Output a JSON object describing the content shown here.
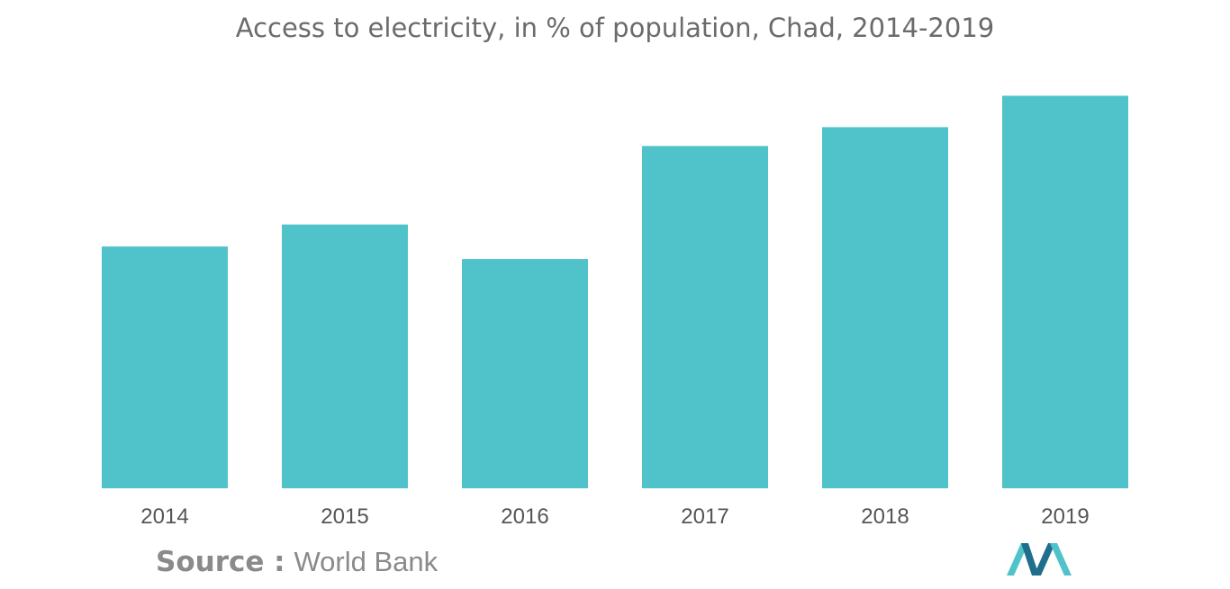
{
  "title": "Access to electricity, in % of population, Chad, 2014-2019",
  "source": {
    "prefix": "Source :",
    "name": "World Bank"
  },
  "colors": {
    "bar": "#50C3CA",
    "title": "#6b6b6b",
    "tick": "#555555",
    "logo_dark": "#1E6E8C",
    "logo_light": "#50C3CA"
  },
  "logo": {
    "icon": "mordor-intelligence-logo-icon"
  },
  "chart_data": {
    "type": "bar",
    "categories": [
      "2014",
      "2015",
      "2016",
      "2017",
      "2018",
      "2019"
    ],
    "values": [
      7.7,
      8.4,
      7.3,
      10.9,
      11.5,
      12.5
    ],
    "ylim": [
      0,
      12.8
    ],
    "grid": false,
    "legend": "none",
    "xlabel": "",
    "ylabel": ""
  }
}
